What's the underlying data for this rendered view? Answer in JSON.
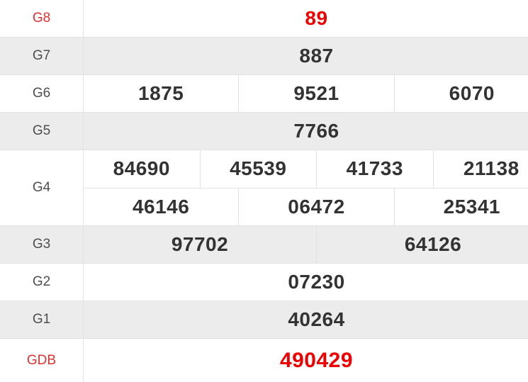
{
  "table": {
    "name": "lottery-results",
    "rows": [
      {
        "label": "G8",
        "accent": true,
        "shade": false,
        "lines": [
          [
            "89"
          ]
        ]
      },
      {
        "label": "G7",
        "accent": false,
        "shade": true,
        "lines": [
          [
            "887"
          ]
        ]
      },
      {
        "label": "G6",
        "accent": false,
        "shade": false,
        "lines": [
          [
            "1875",
            "9521",
            "6070"
          ]
        ]
      },
      {
        "label": "G5",
        "accent": false,
        "shade": true,
        "lines": [
          [
            "7766"
          ]
        ]
      },
      {
        "label": "G4",
        "accent": false,
        "shade": false,
        "lines": [
          [
            "84690",
            "45539",
            "41733",
            "21138"
          ],
          [
            "46146",
            "06472",
            "25341"
          ]
        ]
      },
      {
        "label": "G3",
        "accent": false,
        "shade": true,
        "lines": [
          [
            "97702",
            "64126"
          ]
        ]
      },
      {
        "label": "G2",
        "accent": false,
        "shade": false,
        "lines": [
          [
            "07230"
          ]
        ]
      },
      {
        "label": "G1",
        "accent": false,
        "shade": true,
        "lines": [
          [
            "40264"
          ]
        ]
      },
      {
        "label": "GDB",
        "accent": true,
        "shade": false,
        "lines": [
          [
            "490429"
          ]
        ]
      }
    ],
    "colors": {
      "shade_bg": "#ececec",
      "border": "#e2e2e2",
      "number": "#333333",
      "label": "#4d4d4d",
      "accent_label": "#e03131",
      "accent_value": "#ee0000"
    }
  }
}
